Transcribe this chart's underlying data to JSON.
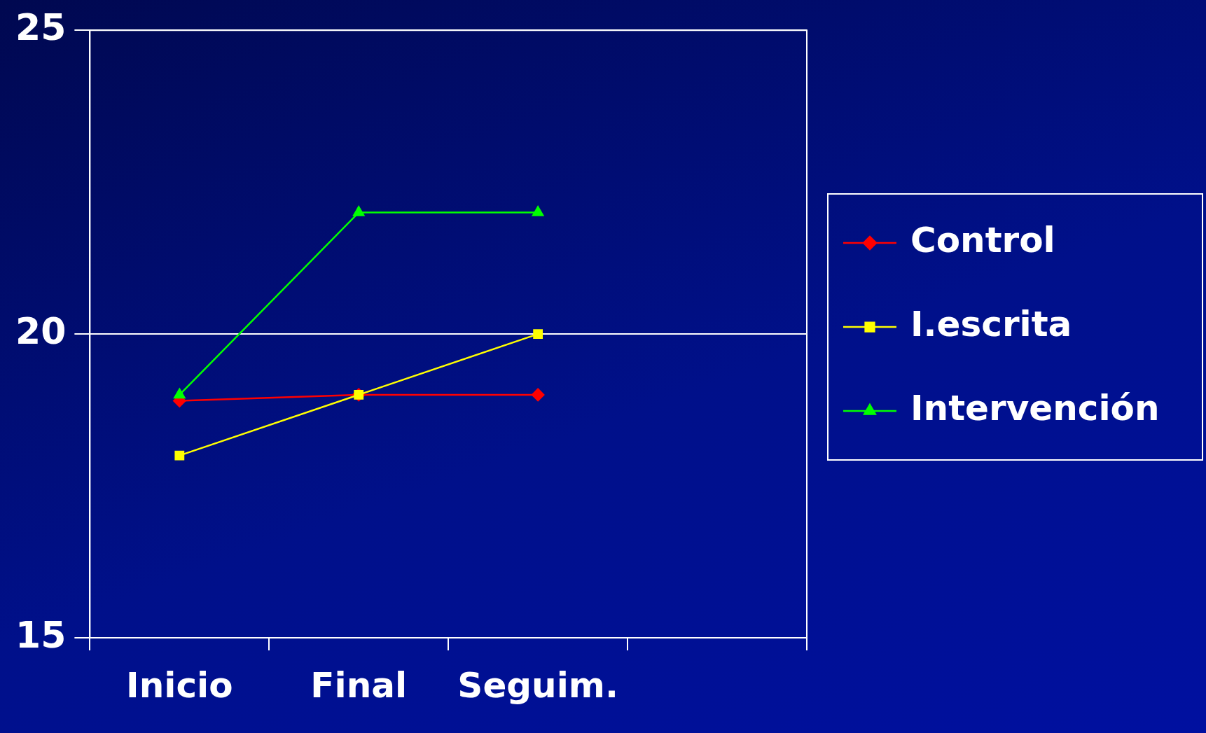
{
  "chart_data": {
    "type": "line",
    "categories": [
      "Inicio",
      "Final",
      "Seguim.",
      null
    ],
    "series": [
      {
        "name": "Control",
        "color": "#ff0000",
        "marker": "diamond",
        "values": [
          18.9,
          19.0,
          19.0,
          null
        ]
      },
      {
        "name": "I.escrita",
        "color": "#ffff00",
        "marker": "square",
        "values": [
          18.0,
          19.0,
          20.0,
          null
        ]
      },
      {
        "name": "Intervención",
        "color": "#00ff00",
        "marker": "triangle",
        "values": [
          19.0,
          22.0,
          22.0,
          null
        ]
      }
    ],
    "ylim": [
      15,
      25
    ],
    "yticks": [
      15,
      20,
      25
    ],
    "grid": "y",
    "legend": "right"
  }
}
